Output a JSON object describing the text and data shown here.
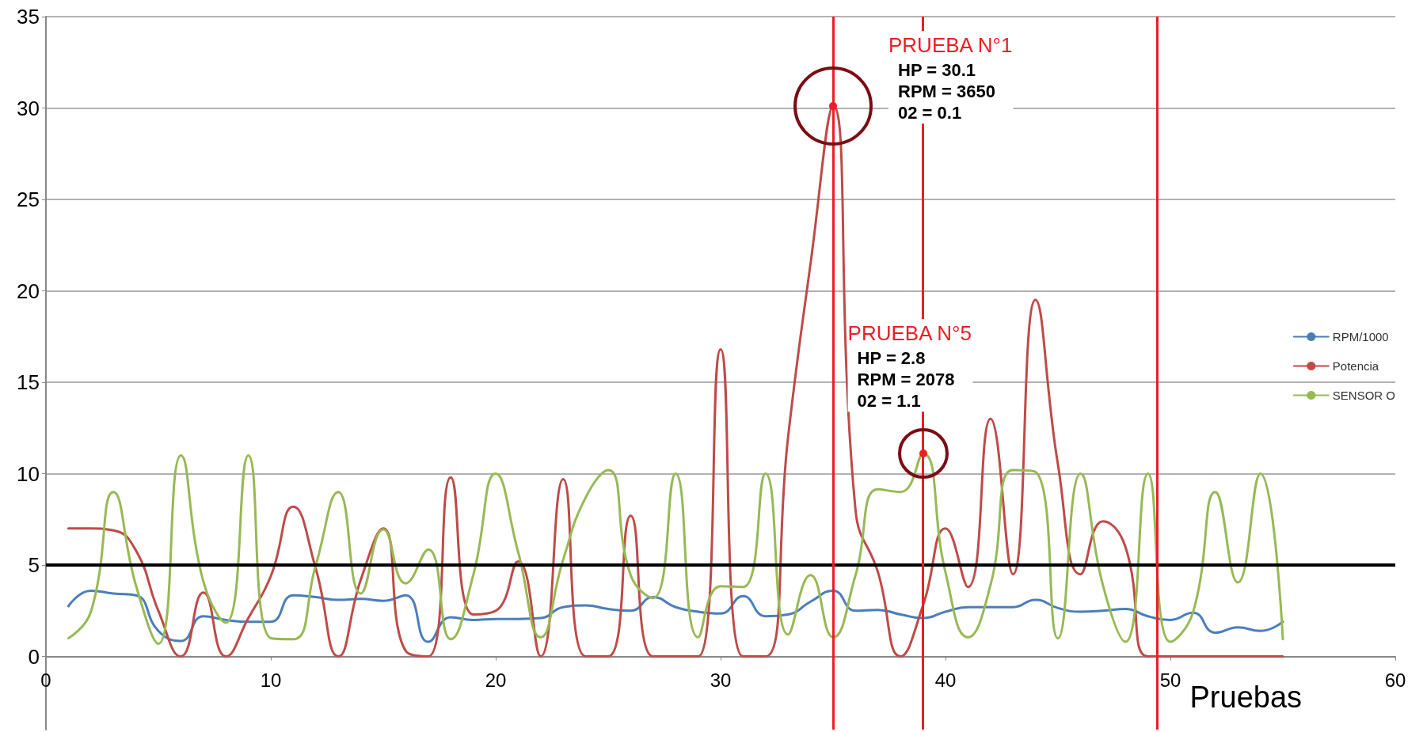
{
  "chart_data": {
    "type": "line",
    "xlabel": "Pruebas",
    "x": [
      1,
      2,
      3,
      4,
      5,
      6,
      7,
      8,
      9,
      10,
      11,
      12,
      13,
      14,
      15,
      16,
      17,
      18,
      19,
      20,
      21,
      22,
      23,
      24,
      25,
      26,
      27,
      28,
      29,
      30,
      31,
      32,
      33,
      34,
      35,
      36,
      37,
      38,
      39,
      40,
      41,
      42,
      43,
      44,
      45,
      46,
      47,
      48,
      49,
      50,
      51,
      52,
      53,
      54,
      55
    ],
    "series": [
      {
        "name": "RPM/1000",
        "color": "#4a7ebb",
        "values": [
          2.75,
          3.6,
          3.45,
          3.35,
          1.4,
          0.85,
          2.2,
          2.0,
          1.9,
          1.9,
          3.35,
          3.25,
          3.1,
          3.15,
          3.05,
          3.35,
          0.8,
          2.15,
          2.0,
          2.05,
          2.05,
          2.1,
          2.7,
          2.8,
          2.6,
          2.5,
          3.25,
          2.7,
          2.45,
          2.35,
          3.3,
          2.2,
          2.3,
          3.0,
          3.6,
          2.5,
          2.55,
          2.3,
          2.1,
          2.45,
          2.7,
          2.7,
          2.7,
          3.1,
          2.65,
          2.45,
          2.5,
          2.6,
          2.2,
          2.0,
          2.4,
          1.3,
          1.6,
          1.4,
          1.9
        ]
      },
      {
        "name": "Potencia",
        "color": "#be4b48",
        "values": [
          7,
          7,
          6.9,
          5.8,
          2.5,
          0,
          3.5,
          0,
          2.1,
          4.4,
          8.2,
          4.8,
          0,
          4.2,
          7,
          0.3,
          0,
          9.8,
          2.3,
          2.5,
          5.2,
          0,
          9.7,
          0,
          0,
          7.7,
          0,
          0,
          0,
          16.8,
          0,
          0,
          12,
          21.5,
          30.1,
          8,
          4.6,
          0,
          2.8,
          7,
          3.8,
          13,
          4.5,
          19.5,
          10.5,
          4.5,
          7.4,
          6,
          0,
          0,
          0,
          0,
          0,
          0,
          0
        ]
      },
      {
        "name": "SENSOR O",
        "color": "#98b954",
        "values": [
          1.0,
          2.45,
          9.0,
          3.9,
          0.7,
          11.0,
          4.1,
          1.85,
          11.0,
          1.0,
          0.95,
          5.0,
          9.0,
          3.45,
          6.95,
          4.0,
          5.85,
          0.95,
          4.45,
          10.0,
          5.7,
          1.05,
          5.3,
          8.7,
          10.2,
          4.45,
          3.2,
          10.0,
          1.05,
          3.85,
          3.8,
          10.0,
          1.2,
          4.45,
          1.05,
          4.45,
          9.15,
          9.0,
          11.1,
          4.6,
          1.05,
          3.9,
          10.2,
          10.1,
          1.0,
          10.0,
          3.9,
          0.8,
          10.0,
          0.8,
          2.4,
          9.0,
          4.05,
          10.0,
          0.95
        ]
      }
    ],
    "xlim": [
      0,
      60
    ],
    "xticks": [
      0,
      10,
      20,
      30,
      40,
      50,
      60
    ],
    "ylim": [
      -4,
      35
    ],
    "yticks": [
      0,
      5,
      10,
      15,
      20,
      25,
      30,
      35
    ],
    "grid": "y",
    "legend": "right",
    "marker": "none",
    "line_style": "solid",
    "ref_lines": [
      {
        "axis": "y",
        "value": 5,
        "color": "#000000"
      },
      {
        "axis": "x",
        "value": 35,
        "color": "#ee1c25"
      },
      {
        "axis": "x",
        "value": 39,
        "color": "#ee1c25"
      },
      {
        "axis": "x",
        "value": 49.4,
        "color": "#ee1c25"
      }
    ],
    "annotations": [
      {
        "text": "PRUEBA N°1\nHP = 30.1\nRPM = 3650\n02 = 0.1",
        "x": 35,
        "y": 30.1
      },
      {
        "text": "PRUEBA N°5\nHP = 2.8\nRPM = 2078\n02 = 1.1",
        "x": 39,
        "y": 11.1
      }
    ]
  }
}
